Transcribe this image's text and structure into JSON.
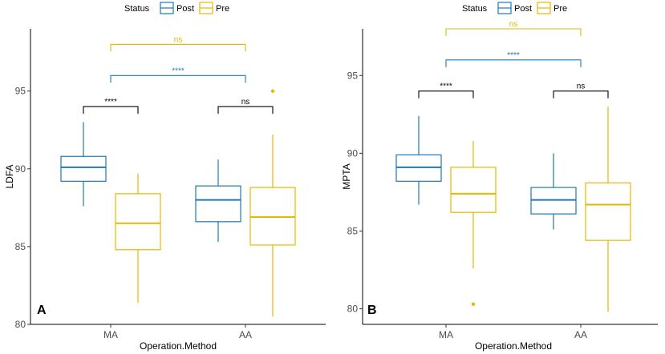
{
  "colors": {
    "post": "#1f78b4",
    "pre": "#e6b800",
    "black": "#000000"
  },
  "legend": {
    "title": "Status",
    "items": [
      "Post",
      "Pre"
    ]
  },
  "chart_data": [
    {
      "type": "boxplot",
      "panel_label": "A",
      "ylabel": "LDFA",
      "xlabel": "Operation.Method",
      "categories": [
        "MA",
        "AA"
      ],
      "ylim": [
        80,
        99
      ],
      "yticks": [
        80,
        85,
        90,
        95
      ],
      "ytick_labels": [
        "80",
        "85",
        "90",
        "95"
      ],
      "series": [
        {
          "name": "Post",
          "boxes": [
            {
              "category": "MA",
              "min": 87.6,
              "q1": 89.2,
              "median": 90.1,
              "q3": 90.8,
              "max": 93.0,
              "outliers": []
            },
            {
              "category": "AA",
              "min": 85.3,
              "q1": 86.6,
              "median": 88.0,
              "q3": 88.9,
              "max": 90.6,
              "outliers": []
            }
          ]
        },
        {
          "name": "Pre",
          "boxes": [
            {
              "category": "MA",
              "min": 81.4,
              "q1": 84.8,
              "median": 86.5,
              "q3": 88.4,
              "max": 89.7,
              "outliers": []
            },
            {
              "category": "AA",
              "min": 80.5,
              "q1": 85.1,
              "median": 86.9,
              "q3": 88.8,
              "max": 92.2,
              "outliers": [
                95.0
              ]
            }
          ]
        }
      ],
      "annotations": [
        {
          "label": "****",
          "color": "black",
          "y": 94.0,
          "from": "MA-Post",
          "to": "MA-Pre"
        },
        {
          "label": "ns",
          "color": "black",
          "y": 94.0,
          "from": "AA-Post",
          "to": "AA-Pre"
        },
        {
          "label": "****",
          "color": "post",
          "y": 96.0,
          "from": "MA",
          "to": "AA"
        },
        {
          "label": "ns",
          "color": "pre",
          "y": 98.0,
          "from": "MA",
          "to": "AA"
        }
      ]
    },
    {
      "type": "boxplot",
      "panel_label": "B",
      "ylabel": "MPTA",
      "xlabel": "Operation.Method",
      "categories": [
        "MA",
        "AA"
      ],
      "ylim": [
        79,
        98
      ],
      "yticks": [
        80,
        85,
        90,
        95
      ],
      "ytick_labels": [
        "80",
        "85",
        "90",
        "95"
      ],
      "series": [
        {
          "name": "Post",
          "boxes": [
            {
              "category": "MA",
              "min": 86.7,
              "q1": 88.2,
              "median": 89.1,
              "q3": 89.9,
              "max": 92.4,
              "outliers": []
            },
            {
              "category": "AA",
              "min": 85.1,
              "q1": 86.1,
              "median": 87.0,
              "q3": 87.8,
              "max": 90.0,
              "outliers": []
            }
          ]
        },
        {
          "name": "Pre",
          "boxes": [
            {
              "category": "MA",
              "min": 82.6,
              "q1": 86.2,
              "median": 87.4,
              "q3": 89.1,
              "max": 90.8,
              "outliers": [
                80.3
              ]
            },
            {
              "category": "AA",
              "min": 79.8,
              "q1": 84.4,
              "median": 86.7,
              "q3": 88.1,
              "max": 93.0,
              "outliers": []
            }
          ]
        }
      ],
      "annotations": [
        {
          "label": "****",
          "color": "black",
          "y": 94.0,
          "from": "MA-Post",
          "to": "MA-Pre"
        },
        {
          "label": "ns",
          "color": "black",
          "y": 94.0,
          "from": "AA-Post",
          "to": "AA-Pre"
        },
        {
          "label": "****",
          "color": "post",
          "y": 96.0,
          "from": "MA",
          "to": "AA"
        },
        {
          "label": "ns",
          "color": "pre",
          "y": 98.0,
          "from": "MA",
          "to": "AA"
        }
      ]
    }
  ]
}
